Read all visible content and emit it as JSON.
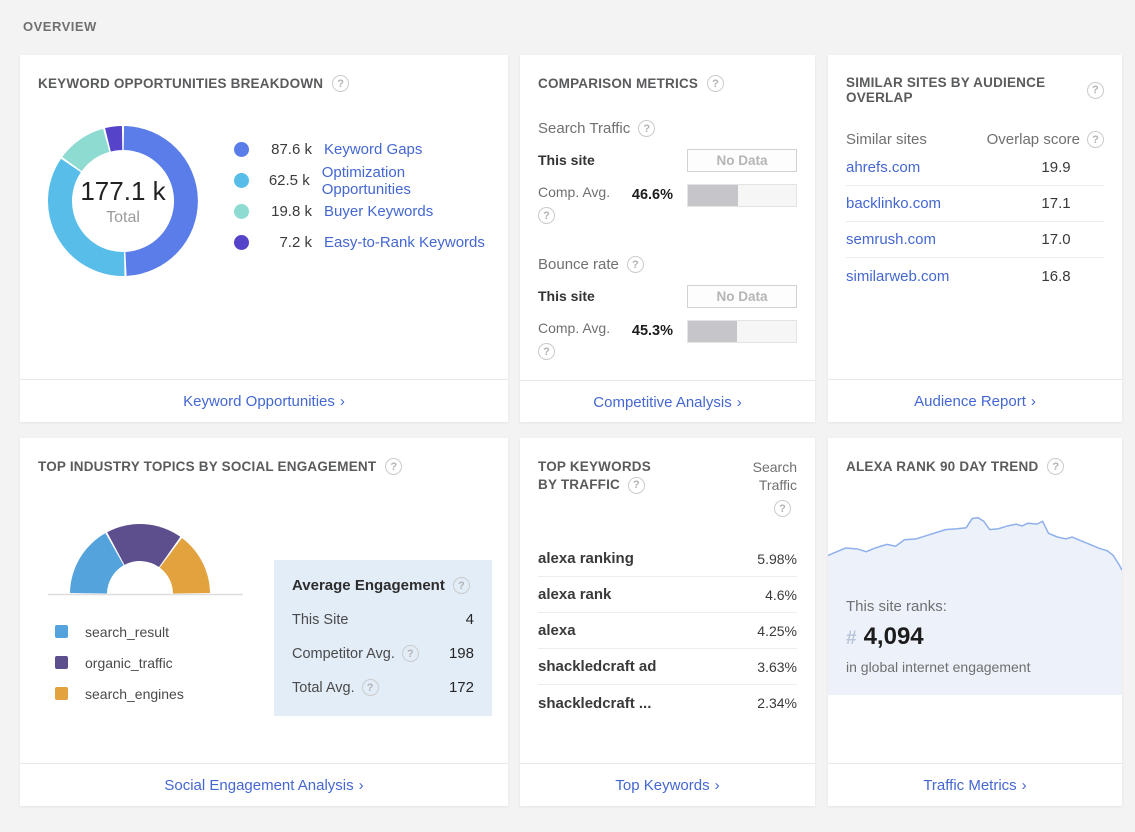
{
  "page": {
    "heading": "OVERVIEW",
    "icons": {
      "help": "?",
      "chevron": "›",
      "hash": "#"
    }
  },
  "keyword_card": {
    "title": "KEYWORD OPPORTUNITIES BREAKDOWN",
    "center_value": "177.1 k",
    "center_label": "Total",
    "legend": [
      {
        "value": "87.6 k",
        "label": "Keyword Gaps",
        "color": "#5b7de9"
      },
      {
        "value": "62.5 k",
        "label": "Optimization Opportunities",
        "color": "#58bee9"
      },
      {
        "value": "19.8 k",
        "label": "Buyer Keywords",
        "color": "#8edbd2"
      },
      {
        "value": "7.2 k",
        "label": "Easy-to-Rank Keywords",
        "color": "#5544c9"
      }
    ],
    "footer_link": "Keyword Opportunities"
  },
  "comparison_card": {
    "title": "COMPARISON METRICS",
    "metrics": [
      {
        "name": "Search Traffic",
        "this_site_label": "This site",
        "this_site_value": "No Data",
        "avg_label": "Comp. Avg.",
        "avg_value": "46.6%",
        "avg_percent": 46.6
      },
      {
        "name": "Bounce rate",
        "this_site_label": "This site",
        "this_site_value": "No Data",
        "avg_label": "Comp. Avg.",
        "avg_value": "45.3%",
        "avg_percent": 45.3
      }
    ],
    "footer_link": "Competitive Analysis"
  },
  "similar_sites_card": {
    "title": "SIMILAR SITES BY AUDIENCE OVERLAP",
    "col_site": "Similar sites",
    "col_score": "Overlap score",
    "rows": [
      {
        "site": "ahrefs.com",
        "score": "19.9"
      },
      {
        "site": "backlinko.com",
        "score": "17.1"
      },
      {
        "site": "semrush.com",
        "score": "17.0"
      },
      {
        "site": "similarweb.com",
        "score": "16.8"
      }
    ],
    "footer_link": "Audience Report"
  },
  "topics_card": {
    "title": "TOP INDUSTRY TOPICS BY SOCIAL ENGAGEMENT",
    "legend": [
      {
        "label": "search_result",
        "color": "#55a3dc"
      },
      {
        "label": "organic_traffic",
        "color": "#5d4e8e"
      },
      {
        "label": "search_engines",
        "color": "#e2a23e"
      }
    ],
    "engagement_box": {
      "title": "Average Engagement",
      "rows": [
        {
          "label": "This Site",
          "value": "4"
        },
        {
          "label": "Competitor Avg.",
          "value": "198"
        },
        {
          "label": "Total Avg.",
          "value": "172"
        }
      ]
    },
    "footer_link": "Social Engagement Analysis"
  },
  "keywords_card": {
    "title_line1": "TOP KEYWORDS",
    "title_line2": "BY TRAFFIC",
    "col_line1": "Search",
    "col_line2": "Traffic",
    "rows": [
      {
        "keyword": "alexa ranking",
        "traffic": "5.98%"
      },
      {
        "keyword": "alexa rank",
        "traffic": "4.6%"
      },
      {
        "keyword": "alexa",
        "traffic": "4.25%"
      },
      {
        "keyword": "shackledcraft ad",
        "traffic": "3.63%"
      },
      {
        "keyword": "shackledcraft ...",
        "traffic": "2.34%"
      }
    ],
    "footer_link": "Top Keywords"
  },
  "rank_card": {
    "title": "ALEXA RANK 90 DAY TREND",
    "ranks_label": "This site ranks:",
    "rank_value": "4,094",
    "ranks_sub": "in global internet engagement",
    "footer_link": "Traffic Metrics"
  },
  "chart_data": [
    {
      "type": "pie",
      "variant": "donut",
      "title": "Keyword opportunities breakdown",
      "center_total": 177.1,
      "unit": "k",
      "labels": [
        "Keyword Gaps",
        "Optimization Opportunities",
        "Buyer Keywords",
        "Easy-to-Rank Keywords"
      ],
      "values": [
        87.6,
        62.5,
        19.8,
        7.2
      ],
      "colors": [
        "#5b7de9",
        "#58bee9",
        "#8edbd2",
        "#5544c9"
      ],
      "legend_position": "right"
    },
    {
      "type": "pie",
      "variant": "half-donut-gauge",
      "title": "Top industry topics by social engagement",
      "labels": [
        "search_result",
        "organic_traffic",
        "search_engines"
      ],
      "values": [
        34,
        36,
        30
      ],
      "colors": [
        "#55a3dc",
        "#5d4e8e",
        "#e2a23e"
      ],
      "legend_position": "bottom-left"
    },
    {
      "type": "area",
      "title": "Alexa rank 90 day trend",
      "x_range_days": [
        0,
        90
      ],
      "points_pct": [
        [
          0,
          70
        ],
        [
          3,
          66
        ],
        [
          6,
          62
        ],
        [
          10,
          63
        ],
        [
          13,
          66
        ],
        [
          16,
          62
        ],
        [
          20,
          58
        ],
        [
          23,
          60
        ],
        [
          26,
          53
        ],
        [
          30,
          52
        ],
        [
          33,
          49
        ],
        [
          37,
          45
        ],
        [
          40,
          42
        ],
        [
          44,
          41
        ],
        [
          47,
          40
        ],
        [
          49,
          30
        ],
        [
          51,
          29
        ],
        [
          53,
          33
        ],
        [
          55,
          42
        ],
        [
          58,
          41
        ],
        [
          61,
          38
        ],
        [
          64,
          36
        ],
        [
          66,
          38
        ],
        [
          68,
          35
        ],
        [
          71,
          36
        ],
        [
          73,
          33
        ],
        [
          75,
          46
        ],
        [
          78,
          50
        ],
        [
          81,
          52
        ],
        [
          83,
          50
        ],
        [
          86,
          54
        ],
        [
          89,
          58
        ],
        [
          92,
          62
        ],
        [
          95,
          65
        ],
        [
          97,
          70
        ],
        [
          99,
          80
        ],
        [
          100,
          86
        ]
      ],
      "line_color": "#8fb0ec",
      "fill_color": "#edf1f9",
      "grid": false
    },
    {
      "type": "bar",
      "title": "Comparison metrics (competitor averages)",
      "categories": [
        "Search Traffic Comp. Avg.",
        "Bounce rate Comp. Avg."
      ],
      "values": [
        46.6,
        45.3
      ],
      "unit": "%",
      "xlim": [
        0,
        100
      ]
    }
  ]
}
